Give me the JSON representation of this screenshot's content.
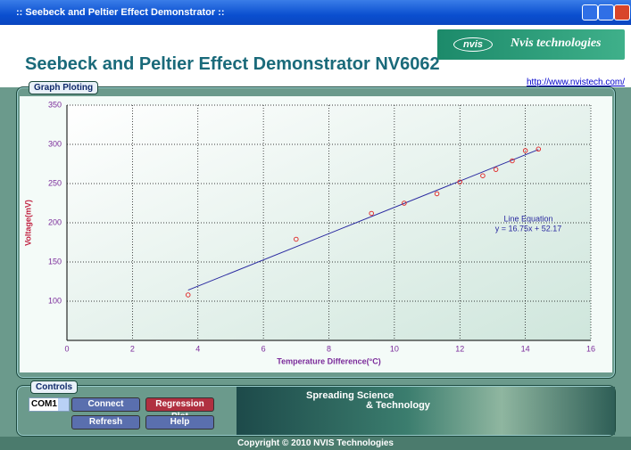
{
  "window": {
    "title": ":: Seebeck and Peltier Effect Demonstrator ::"
  },
  "header": {
    "title": "Seebeck and Peltier Effect Demonstrator NV6062",
    "logo_mark": "nvis",
    "logo_text": "Nvis technologies",
    "link": "http://www.nvistech.com/"
  },
  "graph": {
    "panel_title": "Graph Ploting",
    "type": "scatter",
    "x_label": "Temperature Difference(°C)",
    "y_label": "Voltage(mV)",
    "x": [
      3.7,
      7,
      9.3,
      10.3,
      11.3,
      12,
      12.7,
      13.1,
      13.6,
      14,
      14.4
    ],
    "values": [
      108,
      179,
      212,
      225,
      237,
      252,
      260,
      268,
      279,
      292,
      294
    ],
    "point_color": "#e02020",
    "line_color": "#2a2aa0",
    "grid": true,
    "xlim": [
      0,
      16
    ],
    "xticks": [
      0,
      2,
      4,
      6,
      8,
      10,
      12,
      14,
      16
    ],
    "ylim": [
      50,
      350
    ],
    "yticks": [
      100,
      150,
      200,
      250,
      300,
      350
    ],
    "fit": {
      "title": "Line Equation",
      "label": "y = 16.75x + 52.17",
      "slope": 16.75,
      "intercept": 52.17
    }
  },
  "controls": {
    "panel_title": "Controls",
    "port": "COM1",
    "buttons": [
      "Connect",
      "Regression Plot",
      "Refresh",
      "Help"
    ],
    "banner": [
      "Spreading Science",
      "& Technology"
    ]
  },
  "footer": {
    "text": "Copyright © 2010 NVIS Technologies"
  }
}
